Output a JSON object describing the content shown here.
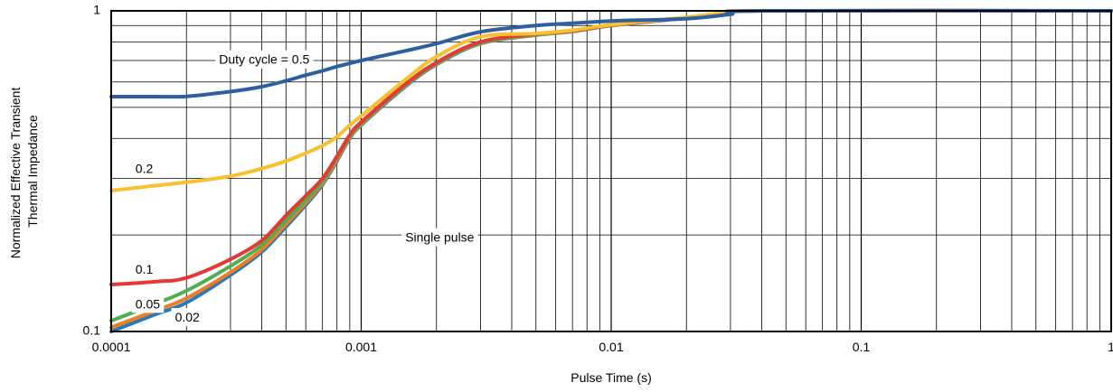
{
  "chart_data": {
    "type": "line",
    "title": "",
    "xlabel": "Pulse Time (s)",
    "ylabel_lines": [
      "Normalized Effective Transient",
      "Thermal Impedance"
    ],
    "x_scale": "log",
    "y_scale": "log",
    "xlim": [
      0.0001,
      1
    ],
    "ylim": [
      0.1,
      1
    ],
    "x_ticks": [
      {
        "value": 0.0001,
        "label": "0.0001"
      },
      {
        "value": 0.001,
        "label": "0.001"
      },
      {
        "value": 0.01,
        "label": "0.01"
      },
      {
        "value": 0.1,
        "label": "0.1"
      },
      {
        "value": 1,
        "label": "1"
      }
    ],
    "y_ticks": [
      {
        "value": 0.1,
        "label": "0.1"
      },
      {
        "value": 1,
        "label": "1"
      }
    ],
    "grid": true,
    "legend": "none",
    "series": [
      {
        "name": "Single pulse",
        "color": "#2a7ab8",
        "points": [
          [
            0.0001,
            0.1
          ],
          [
            0.00015,
            0.113
          ],
          [
            0.0002,
            0.123
          ],
          [
            0.0003,
            0.15
          ],
          [
            0.0004,
            0.177
          ],
          [
            0.0005,
            0.212
          ],
          [
            0.0006,
            0.248
          ],
          [
            0.0007,
            0.287
          ],
          [
            0.0008,
            0.34
          ],
          [
            0.0009,
            0.4
          ],
          [
            0.001,
            0.44
          ],
          [
            0.0015,
            0.58
          ],
          [
            0.002,
            0.68
          ],
          [
            0.003,
            0.79
          ],
          [
            0.005,
            0.84
          ],
          [
            0.007,
            0.862
          ],
          [
            0.01,
            0.9
          ],
          [
            0.02,
            0.95
          ],
          [
            0.03,
            0.99
          ],
          [
            0.04,
            1.0
          ],
          [
            1,
            1.0
          ]
        ]
      },
      {
        "name": "0.02",
        "color": "#f07c23",
        "points": [
          [
            0.0001,
            0.103
          ],
          [
            0.00015,
            0.116
          ],
          [
            0.0002,
            0.127
          ],
          [
            0.0003,
            0.153
          ],
          [
            0.0004,
            0.18
          ],
          [
            0.0005,
            0.216
          ],
          [
            0.0006,
            0.252
          ],
          [
            0.0007,
            0.29
          ],
          [
            0.0008,
            0.343
          ],
          [
            0.0009,
            0.402
          ],
          [
            0.001,
            0.442
          ],
          [
            0.0015,
            0.583
          ],
          [
            0.002,
            0.682
          ],
          [
            0.003,
            0.792
          ],
          [
            0.005,
            0.842
          ],
          [
            0.007,
            0.863
          ],
          [
            0.01,
            0.901
          ],
          [
            0.02,
            0.951
          ],
          [
            0.03,
            0.99
          ],
          [
            0.04,
            1.0
          ],
          [
            1,
            1.0
          ]
        ]
      },
      {
        "name": "0.05",
        "color": "#4caf50",
        "points": [
          [
            0.0001,
            0.108
          ],
          [
            0.00015,
            0.122
          ],
          [
            0.0002,
            0.134
          ],
          [
            0.0003,
            0.16
          ],
          [
            0.0004,
            0.186
          ],
          [
            0.0005,
            0.222
          ],
          [
            0.0006,
            0.257
          ],
          [
            0.0007,
            0.294
          ],
          [
            0.0008,
            0.348
          ],
          [
            0.0009,
            0.405
          ],
          [
            0.001,
            0.445
          ],
          [
            0.0015,
            0.585
          ],
          [
            0.002,
            0.684
          ],
          [
            0.003,
            0.794
          ],
          [
            0.005,
            0.844
          ],
          [
            0.007,
            0.864
          ],
          [
            0.01,
            0.902
          ],
          [
            0.02,
            0.952
          ],
          [
            0.03,
            0.99
          ],
          [
            0.04,
            1.0
          ],
          [
            1,
            1.0
          ]
        ]
      },
      {
        "name": "0.1",
        "color": "#e53935",
        "points": [
          [
            0.0001,
            0.14
          ],
          [
            0.00015,
            0.143
          ],
          [
            0.0002,
            0.147
          ],
          [
            0.0003,
            0.168
          ],
          [
            0.0004,
            0.192
          ],
          [
            0.0005,
            0.23
          ],
          [
            0.0006,
            0.265
          ],
          [
            0.0007,
            0.3
          ],
          [
            0.0008,
            0.352
          ],
          [
            0.0009,
            0.41
          ],
          [
            0.001,
            0.45
          ],
          [
            0.0015,
            0.59
          ],
          [
            0.002,
            0.69
          ],
          [
            0.003,
            0.8
          ],
          [
            0.005,
            0.848
          ],
          [
            0.007,
            0.866
          ],
          [
            0.01,
            0.903
          ],
          [
            0.02,
            0.953
          ],
          [
            0.03,
            0.99
          ],
          [
            0.04,
            1.0
          ],
          [
            1,
            1.0
          ]
        ]
      },
      {
        "name": "0.2",
        "color": "#f7c130",
        "points": [
          [
            0.0001,
            0.275
          ],
          [
            0.00015,
            0.285
          ],
          [
            0.0002,
            0.292
          ],
          [
            0.0003,
            0.305
          ],
          [
            0.0004,
            0.322
          ],
          [
            0.0005,
            0.34
          ],
          [
            0.0006,
            0.36
          ],
          [
            0.0007,
            0.38
          ],
          [
            0.0008,
            0.405
          ],
          [
            0.0009,
            0.44
          ],
          [
            0.001,
            0.47
          ],
          [
            0.0015,
            0.61
          ],
          [
            0.002,
            0.72
          ],
          [
            0.003,
            0.83
          ],
          [
            0.005,
            0.85
          ],
          [
            0.007,
            0.87
          ],
          [
            0.01,
            0.905
          ],
          [
            0.02,
            0.955
          ],
          [
            0.03,
            0.992
          ],
          [
            0.04,
            1.0
          ],
          [
            1,
            1.0
          ]
        ]
      },
      {
        "name": "Duty cycle = 0.5",
        "color": "#2e5fa0",
        "points": [
          [
            0.0001,
            0.54
          ],
          [
            0.00015,
            0.54
          ],
          [
            0.0002,
            0.541
          ],
          [
            0.0003,
            0.56
          ],
          [
            0.0004,
            0.58
          ],
          [
            0.0005,
            0.605
          ],
          [
            0.0006,
            0.63
          ],
          [
            0.0007,
            0.65
          ],
          [
            0.0008,
            0.67
          ],
          [
            0.001,
            0.7
          ],
          [
            0.0015,
            0.75
          ],
          [
            0.002,
            0.79
          ],
          [
            0.003,
            0.86
          ],
          [
            0.005,
            0.9
          ],
          [
            0.007,
            0.915
          ],
          [
            0.01,
            0.93
          ],
          [
            0.02,
            0.945
          ],
          [
            0.03,
            0.975
          ],
          [
            0.04,
            1.0
          ],
          [
            1,
            1.0
          ]
        ]
      }
    ],
    "annotations": [
      {
        "text": "Duty cycle = 0.5",
        "x": 0.00027,
        "y": 0.7
      },
      {
        "text": "0.2",
        "x": 0.000125,
        "y": 0.32
      },
      {
        "text": "Single pulse",
        "x": 0.0015,
        "y": 0.195
      },
      {
        "text": "0.1",
        "x": 0.000125,
        "y": 0.155
      },
      {
        "text": "0.05",
        "x": 0.000125,
        "y": 0.121
      },
      {
        "text": "0.02",
        "x": 0.00018,
        "y": 0.11
      }
    ]
  }
}
